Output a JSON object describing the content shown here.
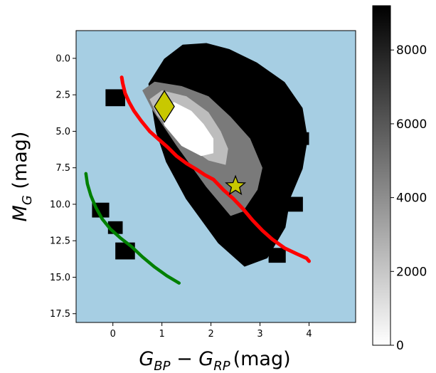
{
  "chart_data": {
    "type": "heatmap",
    "xlabel": {
      "parts": [
        "G",
        "BP",
        " − ",
        "G",
        "RP",
        "(mag)"
      ]
    },
    "ylabel": {
      "parts": [
        "M",
        "G",
        " (mag)"
      ]
    },
    "xlim": [
      -0.75,
      4.95
    ],
    "ylim": [
      18.1,
      -1.9
    ],
    "y_inverted": true,
    "xticks": [
      0,
      1,
      2,
      3,
      4
    ],
    "xtick_labels": [
      "0",
      "1",
      "2",
      "3",
      "4"
    ],
    "yticks": [
      0.0,
      2.5,
      5.0,
      7.5,
      10.0,
      12.5,
      15.0,
      17.5
    ],
    "ytick_labels": [
      "0.0",
      "2.5",
      "5.0",
      "7.5",
      "10.0",
      "12.5",
      "15.0",
      "17.5"
    ],
    "background_color": "#a6cee3",
    "grid": false,
    "colorbar": {
      "cmap": "gray_r",
      "vmin": 0,
      "vmax": 9200,
      "ticks": [
        0,
        2000,
        4000,
        6000,
        8000
      ],
      "tick_labels": [
        "0",
        "2000",
        "4000",
        "6000",
        "8000"
      ]
    },
    "density_levels": [
      {
        "level": 1,
        "color": "#000000",
        "region": "outer",
        "x": [
          0.8,
          1.1,
          1.45,
          1.9,
          2.35,
          2.9,
          3.45,
          3.8,
          3.9,
          3.8,
          3.55,
          3.45,
          3.1,
          2.7,
          2.2,
          1.55,
          1.15,
          0.95,
          0.85
        ],
        "y": [
          1.8,
          0.2,
          -0.7,
          -0.8,
          -0.4,
          0.5,
          1.8,
          3.5,
          5.5,
          7.5,
          9.5,
          11.5,
          13.5,
          14.0,
          12.5,
          9.5,
          7.0,
          5.0,
          3.0
        ]
      },
      {
        "level": 2,
        "color": "#7a7a7a",
        "region": "mid",
        "x": [
          0.6,
          0.85,
          1.4,
          1.95,
          2.4,
          2.8,
          3.05,
          2.95,
          2.65,
          2.4,
          1.9,
          1.3,
          0.8
        ],
        "y": [
          2.2,
          1.6,
          1.9,
          2.6,
          4.0,
          5.5,
          7.5,
          9.0,
          10.5,
          10.8,
          8.8,
          6.0,
          3.5
        ]
      },
      {
        "level": 3,
        "color": "#bdbdbd",
        "region": "inner",
        "x": [
          0.75,
          1.0,
          1.5,
          1.95,
          2.2,
          2.35,
          2.3,
          1.95,
          1.4,
          0.9
        ],
        "y": [
          2.8,
          2.2,
          2.6,
          3.7,
          5.0,
          6.2,
          7.3,
          7.0,
          5.7,
          3.9
        ]
      },
      {
        "level": 4,
        "color": "#ffffff",
        "region": "core",
        "x": [
          0.95,
          1.25,
          1.6,
          1.85,
          2.05,
          2.05,
          1.8,
          1.4,
          1.05
        ],
        "y": [
          3.5,
          3.0,
          3.6,
          4.5,
          5.5,
          6.5,
          6.7,
          6.0,
          4.6
        ]
      }
    ],
    "series": [
      {
        "type": "line",
        "color": "#ff0000",
        "x": [
          0.18,
          0.2,
          0.25,
          0.33,
          0.43,
          0.58,
          0.75,
          0.95,
          1.12,
          1.3,
          1.5,
          1.7,
          1.88,
          2.05,
          2.25,
          2.45,
          2.65,
          2.85,
          3.05,
          3.25,
          3.5,
          3.75,
          3.95,
          4.0
        ],
        "y": [
          1.3,
          1.7,
          2.4,
          3.0,
          3.6,
          4.3,
          5.0,
          5.6,
          6.1,
          6.7,
          7.2,
          7.6,
          8.0,
          8.3,
          9.0,
          9.6,
          10.3,
          11.1,
          11.8,
          12.4,
          13.0,
          13.4,
          13.7,
          13.9
        ]
      },
      {
        "type": "line",
        "color": "#008000",
        "x": [
          -0.55,
          -0.52,
          -0.45,
          -0.35,
          -0.22,
          -0.05,
          0.15,
          0.38,
          0.6,
          0.85,
          1.1,
          1.35
        ],
        "y": [
          7.9,
          8.6,
          9.4,
          10.2,
          11.0,
          11.7,
          12.3,
          12.9,
          13.6,
          14.3,
          14.9,
          15.4
        ]
      }
    ],
    "markers": [
      {
        "shape": "diamond",
        "color": "#c8c800",
        "x": 1.05,
        "y": 3.3
      },
      {
        "shape": "star",
        "color": "#c8c800",
        "x": 2.5,
        "y": 8.75
      }
    ],
    "squares": [
      {
        "x": 0.05,
        "y": 2.7,
        "s": 0.4
      },
      {
        "x": -0.25,
        "y": 10.4,
        "s": 0.35
      },
      {
        "x": 0.25,
        "y": 13.2,
        "s": 0.4
      },
      {
        "x": 0.05,
        "y": 11.6,
        "s": 0.3
      },
      {
        "x": 3.7,
        "y": 10.0,
        "s": 0.35
      },
      {
        "x": 3.7,
        "y": 7.2,
        "s": 0.3
      },
      {
        "x": 3.35,
        "y": 13.5,
        "s": 0.35
      },
      {
        "x": 2.1,
        "y": 0.2,
        "s": 0.3
      },
      {
        "x": 1.55,
        "y": -0.2,
        "s": 0.35
      },
      {
        "x": 3.5,
        "y": 3.0,
        "s": 0.35
      },
      {
        "x": 3.85,
        "y": 5.5,
        "s": 0.3
      }
    ]
  }
}
